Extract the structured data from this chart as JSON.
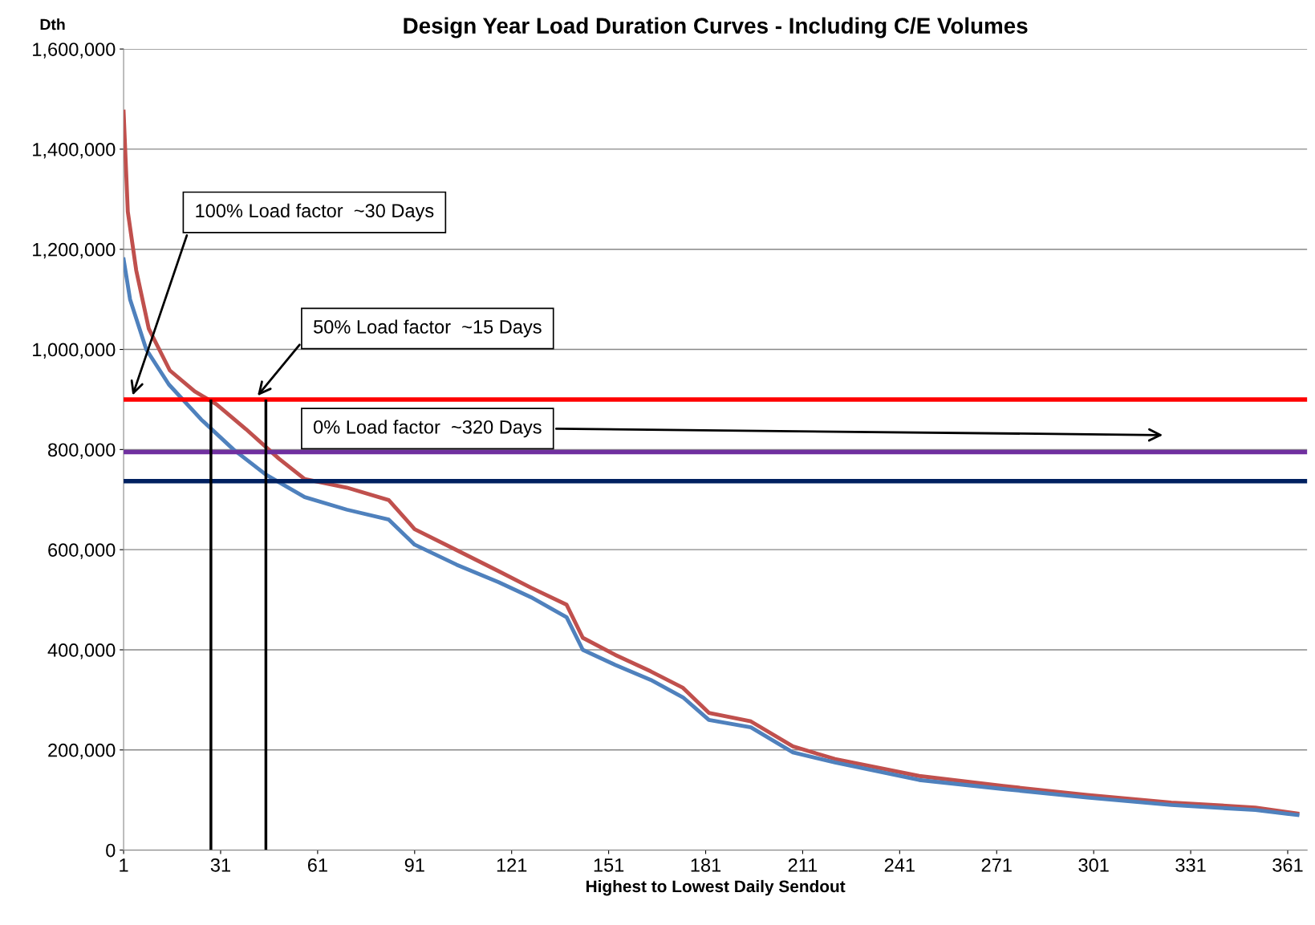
{
  "chart_data": {
    "type": "line",
    "title": "Design Year Load Duration Curves - Including C/E Volumes",
    "xlabel": "Highest to Lowest Daily Sendout",
    "ylabel": "Dth",
    "series": [
      {
        "color": "#c0504d",
        "x": [
          1,
          2.3,
          4.9,
          8.8,
          15.3,
          23,
          29.6,
          38.8,
          49,
          57,
          70,
          83,
          91,
          104,
          117,
          127,
          138,
          143,
          153,
          164,
          174,
          182,
          195,
          208,
          221,
          247,
          273,
          299,
          325,
          351,
          364
        ],
        "values": [
          1475000,
          1275000,
          1158000,
          1041000,
          958000,
          916000,
          891000,
          841000,
          782000,
          741000,
          724000,
          699000,
          641000,
          599000,
          557000,
          524000,
          490000,
          424000,
          390000,
          357000,
          324000,
          274000,
          257000,
          207000,
          182000,
          148000,
          128000,
          110000,
          95000,
          85000,
          73000
        ]
      },
      {
        "color": "#4f81bd",
        "x": [
          1,
          3,
          8,
          15,
          25,
          35,
          45,
          57,
          70,
          83,
          91,
          104,
          117,
          127,
          138,
          143,
          153,
          164,
          174,
          182,
          195,
          208,
          221,
          247,
          273,
          299,
          325,
          351,
          364
        ],
        "values": [
          1180000,
          1100000,
          1000000,
          930000,
          860000,
          800000,
          750000,
          705000,
          680000,
          660000,
          610000,
          570000,
          535000,
          505000,
          465000,
          400000,
          370000,
          340000,
          305000,
          260000,
          245000,
          195000,
          175000,
          140000,
          122000,
          105000,
          90000,
          80000,
          70000
        ]
      }
    ],
    "xlim": [
      1,
      367
    ],
    "xticks": [
      1,
      31,
      61,
      91,
      121,
      151,
      181,
      211,
      241,
      271,
      301,
      331,
      361
    ],
    "ylim": [
      0,
      1600000
    ],
    "yticks": [
      {
        "value": 0,
        "label": "0"
      },
      {
        "value": 200000,
        "label": "200,000"
      },
      {
        "value": 400000,
        "label": "400,000"
      },
      {
        "value": 600000,
        "label": "600,000"
      },
      {
        "value": 800000,
        "label": "800,000"
      },
      {
        "value": 1000000,
        "label": "1,000,000"
      },
      {
        "value": 1200000,
        "label": "1,200,000"
      },
      {
        "value": 1400000,
        "label": "1,400,000"
      },
      {
        "value": 1600000,
        "label": "1,600,000"
      }
    ],
    "grid": "y",
    "line_style": "solid",
    "ref_lines": [
      {
        "axis": "y",
        "value": 900000,
        "color": "#ff0000"
      },
      {
        "axis": "y",
        "value": 795000,
        "color": "#7030a0"
      },
      {
        "axis": "y",
        "value": 737000,
        "color": "#002060"
      },
      {
        "axis": "x",
        "value": 28,
        "color": "#000000"
      },
      {
        "axis": "x",
        "value": 45,
        "color": "#000000"
      }
    ],
    "annotations": [
      "100% Load factor  ~30 Days",
      "50% Load factor  ~15 Days",
      "0% Load factor  ~320 Days"
    ]
  }
}
